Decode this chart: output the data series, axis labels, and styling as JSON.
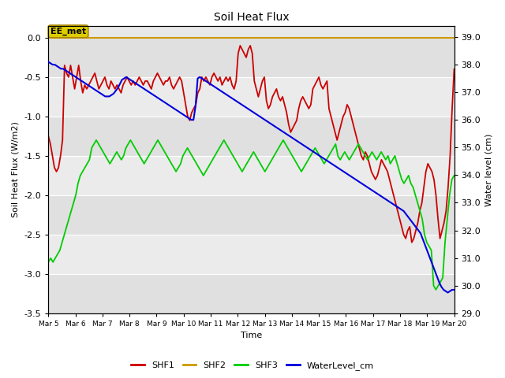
{
  "title": "Soil Heat Flux",
  "ylabel_left": "Soil Heat Flux (W/m2)",
  "ylabel_right": "Water level (cm)",
  "xlabel": "Time",
  "ylim_left": [
    -3.5,
    0.15
  ],
  "ylim_right": [
    29.0,
    39.4
  ],
  "background_color": "#ffffff",
  "plot_bg_color_light": "#e8e8e8",
  "plot_bg_color_dark": "#d0d0d0",
  "annotation_label": "EE_met",
  "shf1_color": "#cc0000",
  "shf2_color": "#cc9900",
  "shf3_color": "#00cc00",
  "water_color": "#0000dd",
  "grid_color": "#ffffff",
  "xtick_labels": [
    "Mar 5",
    "Mar 6",
    "Mar 7",
    "Mar 8",
    "Mar 9",
    "Mar 10",
    "Mar 11",
    "Mar 12",
    "Mar 13",
    "Mar 14",
    "Mar 15",
    "Mar 16",
    "Mar 17",
    "Mar 18",
    "Mar 19",
    "Mar 20"
  ],
  "shf1": [
    -1.25,
    -1.35,
    -1.5,
    -1.65,
    -1.7,
    -1.65,
    -1.5,
    -1.3,
    -0.35,
    -0.45,
    -0.5,
    -0.35,
    -0.5,
    -0.65,
    -0.5,
    -0.35,
    -0.55,
    -0.7,
    -0.6,
    -0.65,
    -0.6,
    -0.55,
    -0.5,
    -0.45,
    -0.55,
    -0.65,
    -0.6,
    -0.55,
    -0.5,
    -0.6,
    -0.65,
    -0.55,
    -0.6,
    -0.65,
    -0.6,
    -0.65,
    -0.7,
    -0.6,
    -0.55,
    -0.5,
    -0.55,
    -0.6,
    -0.55,
    -0.6,
    -0.55,
    -0.5,
    -0.55,
    -0.6,
    -0.55,
    -0.55,
    -0.6,
    -0.65,
    -0.55,
    -0.5,
    -0.45,
    -0.5,
    -0.55,
    -0.6,
    -0.55,
    -0.55,
    -0.5,
    -0.6,
    -0.65,
    -0.6,
    -0.55,
    -0.5,
    -0.55,
    -0.7,
    -0.85,
    -1.0,
    -1.05,
    -0.95,
    -0.9,
    -0.85,
    -0.7,
    -0.65,
    -0.5,
    -0.55,
    -0.5,
    -0.55,
    -0.6,
    -0.5,
    -0.45,
    -0.5,
    -0.55,
    -0.5,
    -0.6,
    -0.55,
    -0.5,
    -0.55,
    -0.5,
    -0.6,
    -0.65,
    -0.55,
    -0.2,
    -0.1,
    -0.15,
    -0.2,
    -0.25,
    -0.15,
    -0.1,
    -0.2,
    -0.55,
    -0.65,
    -0.75,
    -0.65,
    -0.55,
    -0.5,
    -0.8,
    -0.9,
    -0.85,
    -0.75,
    -0.7,
    -0.65,
    -0.75,
    -0.8,
    -0.75,
    -0.85,
    -0.95,
    -1.1,
    -1.2,
    -1.15,
    -1.1,
    -1.05,
    -0.9,
    -0.8,
    -0.75,
    -0.8,
    -0.85,
    -0.9,
    -0.85,
    -0.65,
    -0.6,
    -0.55,
    -0.5,
    -0.6,
    -0.65,
    -0.6,
    -0.55,
    -0.9,
    -1.0,
    -1.1,
    -1.2,
    -1.3,
    -1.2,
    -1.1,
    -1.0,
    -0.95,
    -0.85,
    -0.9,
    -1.0,
    -1.1,
    -1.2,
    -1.3,
    -1.4,
    -1.5,
    -1.55,
    -1.45,
    -1.5,
    -1.6,
    -1.7,
    -1.75,
    -1.8,
    -1.75,
    -1.65,
    -1.55,
    -1.6,
    -1.65,
    -1.7,
    -1.8,
    -1.9,
    -2.0,
    -2.1,
    -2.2,
    -2.3,
    -2.4,
    -2.5,
    -2.55,
    -2.45,
    -2.4,
    -2.6,
    -2.55,
    -2.45,
    -2.35,
    -2.2,
    -2.1,
    -1.9,
    -1.7,
    -1.6,
    -1.65,
    -1.7,
    -1.8,
    -2.0,
    -2.3,
    -2.55,
    -2.45,
    -2.35,
    -2.2,
    -1.9,
    -1.5,
    -0.9,
    -0.4
  ],
  "shf3": [
    -2.85,
    -2.8,
    -2.85,
    -2.8,
    -2.75,
    -2.7,
    -2.6,
    -2.5,
    -2.4,
    -2.3,
    -2.2,
    -2.1,
    -2.0,
    -1.85,
    -1.75,
    -1.7,
    -1.65,
    -1.6,
    -1.55,
    -1.4,
    -1.35,
    -1.3,
    -1.35,
    -1.4,
    -1.45,
    -1.5,
    -1.55,
    -1.6,
    -1.55,
    -1.5,
    -1.45,
    -1.5,
    -1.55,
    -1.5,
    -1.4,
    -1.35,
    -1.3,
    -1.35,
    -1.4,
    -1.45,
    -1.5,
    -1.55,
    -1.6,
    -1.55,
    -1.5,
    -1.45,
    -1.4,
    -1.35,
    -1.3,
    -1.35,
    -1.4,
    -1.45,
    -1.5,
    -1.55,
    -1.6,
    -1.65,
    -1.7,
    -1.65,
    -1.6,
    -1.5,
    -1.45,
    -1.4,
    -1.45,
    -1.5,
    -1.55,
    -1.6,
    -1.65,
    -1.7,
    -1.75,
    -1.7,
    -1.65,
    -1.6,
    -1.55,
    -1.5,
    -1.45,
    -1.4,
    -1.35,
    -1.3,
    -1.35,
    -1.4,
    -1.45,
    -1.5,
    -1.55,
    -1.6,
    -1.65,
    -1.7,
    -1.65,
    -1.6,
    -1.55,
    -1.5,
    -1.45,
    -1.5,
    -1.55,
    -1.6,
    -1.65,
    -1.7,
    -1.65,
    -1.6,
    -1.55,
    -1.5,
    -1.45,
    -1.4,
    -1.35,
    -1.3,
    -1.35,
    -1.4,
    -1.45,
    -1.5,
    -1.55,
    -1.6,
    -1.65,
    -1.7,
    -1.65,
    -1.6,
    -1.55,
    -1.5,
    -1.45,
    -1.4,
    -1.45,
    -1.5,
    -1.55,
    -1.6,
    -1.55,
    -1.5,
    -1.45,
    -1.4,
    -1.35,
    -1.5,
    -1.55,
    -1.5,
    -1.45,
    -1.5,
    -1.55,
    -1.5,
    -1.45,
    -1.4,
    -1.35,
    -1.4,
    -1.45,
    -1.5,
    -1.55,
    -1.5,
    -1.45,
    -1.5,
    -1.55,
    -1.5,
    -1.45,
    -1.5,
    -1.55,
    -1.5,
    -1.6,
    -1.55,
    -1.5,
    -1.6,
    -1.7,
    -1.8,
    -1.85,
    -1.8,
    -1.75,
    -1.85,
    -1.9,
    -2.0,
    -2.1,
    -2.2,
    -2.3,
    -2.5,
    -2.6,
    -2.65,
    -2.7,
    -3.15,
    -3.2,
    -3.15,
    -3.1,
    -3.05,
    -2.6,
    -2.3,
    -2.0,
    -1.8,
    -1.75
  ],
  "water_level": [
    38.1,
    38.05,
    38.0,
    38.0,
    37.95,
    37.9,
    37.85,
    37.85,
    37.8,
    37.75,
    37.7,
    37.65,
    37.6,
    37.55,
    37.5,
    37.45,
    37.4,
    37.35,
    37.3,
    37.25,
    37.2,
    37.15,
    37.1,
    37.05,
    37.0,
    36.95,
    36.9,
    36.85,
    36.85,
    36.85,
    36.9,
    36.95,
    37.05,
    37.15,
    37.3,
    37.45,
    37.5,
    37.55,
    37.5,
    37.45,
    37.4,
    37.35,
    37.3,
    37.25,
    37.2,
    37.15,
    37.1,
    37.05,
    37.0,
    36.95,
    36.9,
    36.85,
    36.8,
    36.75,
    36.7,
    36.65,
    36.6,
    36.55,
    36.5,
    36.45,
    36.4,
    36.35,
    36.3,
    36.25,
    36.2,
    36.15,
    36.1,
    36.05,
    36.0,
    36.0,
    36.5,
    37.5,
    37.55,
    37.5,
    37.45,
    37.4,
    37.35,
    37.3,
    37.25,
    37.2,
    37.15,
    37.1,
    37.05,
    37.0,
    36.95,
    36.9,
    36.85,
    36.8,
    36.75,
    36.7,
    36.65,
    36.6,
    36.55,
    36.5,
    36.45,
    36.4,
    36.35,
    36.3,
    36.25,
    36.2,
    36.15,
    36.1,
    36.05,
    36.0,
    35.95,
    35.9,
    35.85,
    35.8,
    35.75,
    35.7,
    35.65,
    35.6,
    35.55,
    35.5,
    35.45,
    35.4,
    35.35,
    35.3,
    35.25,
    35.2,
    35.15,
    35.1,
    35.05,
    35.0,
    34.95,
    34.9,
    34.85,
    34.8,
    34.75,
    34.7,
    34.65,
    34.6,
    34.55,
    34.5,
    34.45,
    34.4,
    34.35,
    34.3,
    34.25,
    34.2,
    34.15,
    34.1,
    34.05,
    34.0,
    33.95,
    33.9,
    33.85,
    33.8,
    33.75,
    33.7,
    33.65,
    33.6,
    33.55,
    33.5,
    33.45,
    33.4,
    33.35,
    33.3,
    33.25,
    33.2,
    33.15,
    33.1,
    33.05,
    33.0,
    32.95,
    32.9,
    32.85,
    32.8,
    32.75,
    32.7,
    32.6,
    32.5,
    32.4,
    32.3,
    32.2,
    32.1,
    32.0,
    31.9,
    31.7,
    31.5,
    31.3,
    31.1,
    30.9,
    30.7,
    30.5,
    30.3,
    30.1,
    29.95,
    29.85,
    29.8,
    29.75,
    29.8,
    29.85,
    29.85
  ]
}
